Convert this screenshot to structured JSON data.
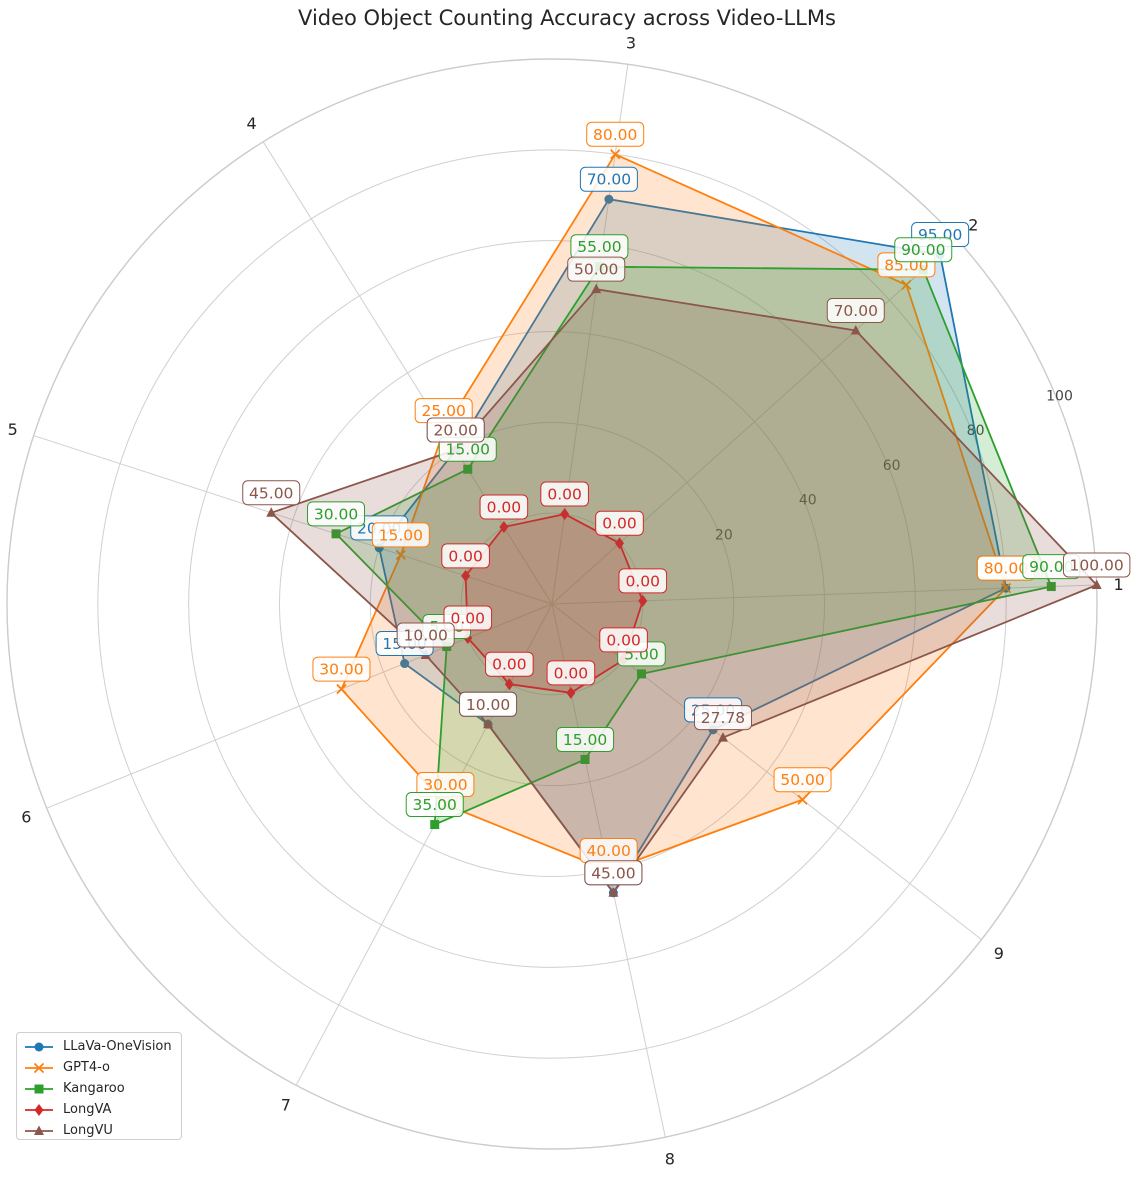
{
  "chart_data": {
    "type": "radar",
    "title": "Video Object Counting Accuracy across Video-LLMs",
    "categories": [
      "1",
      "2",
      "3",
      "4",
      "5",
      "6",
      "7",
      "8",
      "9"
    ],
    "r_ticks": [
      "20",
      "40",
      "60",
      "80",
      "100"
    ],
    "r_range": [
      -20,
      100
    ],
    "grid": true,
    "legend_position": "lower-left",
    "series": [
      {
        "name": "LLaVa-OneVision",
        "color": "#1f77b4",
        "marker": "circle",
        "values": [
          80,
          95,
          70,
          20,
          20,
          15,
          10,
          45,
          25
        ]
      },
      {
        "name": "GPT4-o",
        "color": "#ff7f0e",
        "marker": "x",
        "values": [
          80,
          85,
          80,
          25,
          15,
          30,
          30,
          40,
          50
        ]
      },
      {
        "name": "Kangaroo",
        "color": "#2ca02c",
        "marker": "square",
        "values": [
          90,
          90,
          55,
          15,
          30,
          5,
          35,
          15,
          5
        ]
      },
      {
        "name": "LongVA",
        "color": "#d62728",
        "marker": "diamond",
        "values": [
          0,
          0,
          0,
          0,
          0,
          0,
          0,
          0,
          0
        ]
      },
      {
        "name": "LongVU",
        "color": "#8c564b",
        "marker": "triangle",
        "values": [
          100,
          70,
          50,
          20,
          45,
          10,
          10,
          45,
          27.78
        ]
      }
    ],
    "value_format": "2 decimals"
  }
}
